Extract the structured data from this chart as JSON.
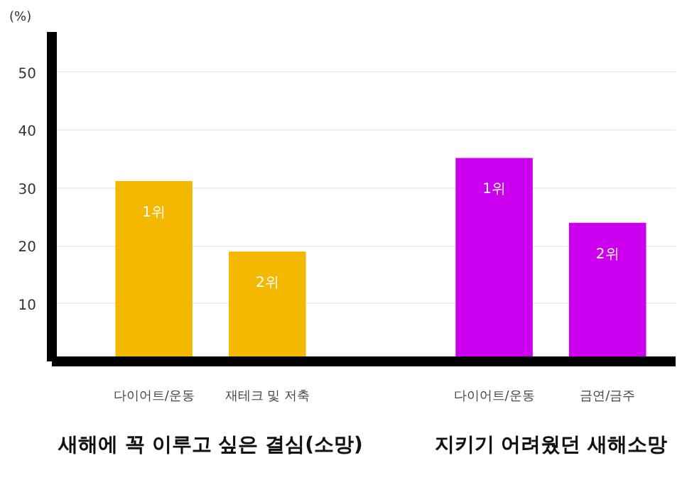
{
  "chart_data": {
    "type": "bar",
    "ylabel": "(%)",
    "categories": [
      "다이어트/운동",
      "재테크 및 저축",
      null,
      "다이어트/운동",
      "금연/금주"
    ],
    "values": [
      31.2,
      19,
      null,
      35.2,
      24
    ],
    "colors": [
      "#f5b800",
      "#f5b800",
      "#f5b800",
      "#cc00ee",
      "#cc00ee"
    ],
    "ylim": [
      0,
      57
    ],
    "yticks": [
      10,
      20,
      30,
      40,
      50
    ],
    "grid": "y",
    "annotations": [
      "1위",
      "2위",
      "1위",
      "2위",
      "새해에 꼭 이루고 싶은 결심(소망)",
      "지키기 어려웠던 새해소망"
    ]
  }
}
